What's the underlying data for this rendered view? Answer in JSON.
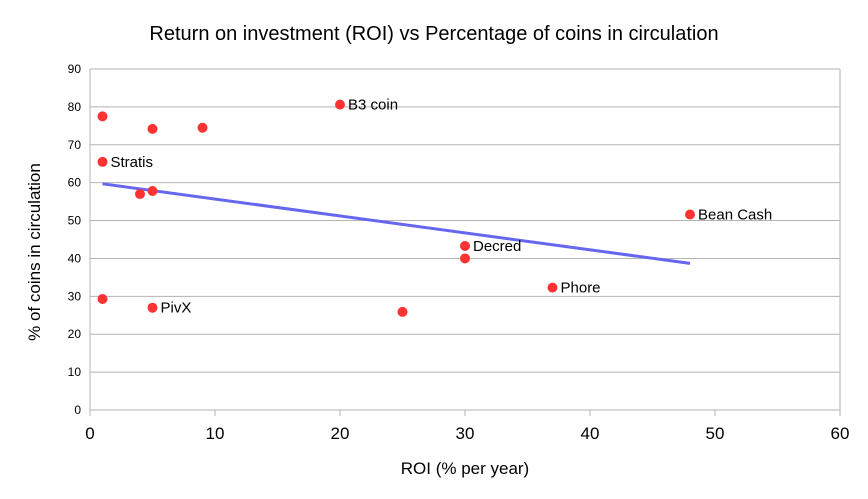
{
  "chart_data": {
    "type": "scatter",
    "title": "Return on investment (ROI) vs Percentage of coins in circulation",
    "xlabel": "ROI (% per year)",
    "ylabel": "% of coins in circulation",
    "xlim": [
      0,
      60
    ],
    "ylim": [
      0,
      90
    ],
    "xticks": [
      0,
      10,
      20,
      30,
      40,
      50,
      60
    ],
    "yticks": [
      0,
      10,
      20,
      30,
      40,
      50,
      60,
      70,
      80,
      90
    ],
    "grid": "horizontal",
    "legend": "none",
    "colors": {
      "points": "#ff3333",
      "trendline": "#6666ee",
      "grid": "#b3b3b3",
      "axis": "#b3b3b3"
    },
    "points": [
      {
        "x": 1,
        "y": 77.5,
        "label": ""
      },
      {
        "x": 5,
        "y": 74.2,
        "label": ""
      },
      {
        "x": 9,
        "y": 74.5,
        "label": ""
      },
      {
        "x": 20,
        "y": 80.6,
        "label": "B3 coin"
      },
      {
        "x": 1,
        "y": 65.5,
        "label": "Stratis"
      },
      {
        "x": 4,
        "y": 57.0,
        "label": ""
      },
      {
        "x": 5,
        "y": 57.8,
        "label": ""
      },
      {
        "x": 48,
        "y": 51.6,
        "label": "Bean Cash"
      },
      {
        "x": 30,
        "y": 43.3,
        "label": "Decred"
      },
      {
        "x": 30,
        "y": 40.0,
        "label": ""
      },
      {
        "x": 37,
        "y": 32.3,
        "label": "Phore"
      },
      {
        "x": 1,
        "y": 29.3,
        "label": ""
      },
      {
        "x": 5,
        "y": 27.0,
        "label": "PivX"
      },
      {
        "x": 25,
        "y": 25.9,
        "label": ""
      }
    ],
    "trendline": {
      "x": [
        1,
        48
      ],
      "y": [
        59.7,
        38.7
      ]
    }
  }
}
